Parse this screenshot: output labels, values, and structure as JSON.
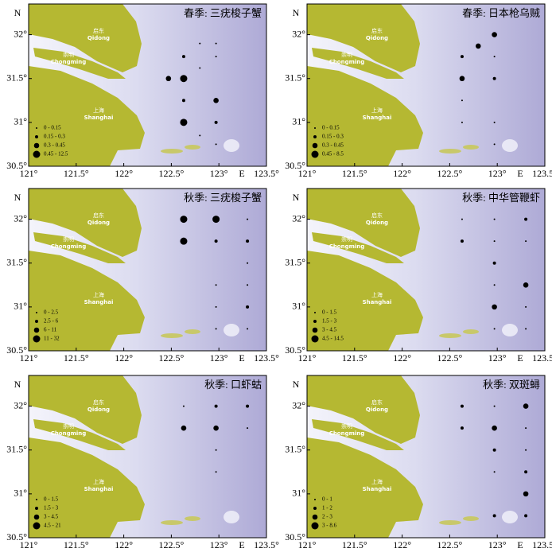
{
  "axis": {
    "xlim": [
      121,
      123.5
    ],
    "ylim": [
      30.5,
      32.35
    ],
    "xticks": [
      {
        "value": 121,
        "label": "121°"
      },
      {
        "value": 121.5,
        "label": "121.5°"
      },
      {
        "value": 122,
        "label": "122°"
      },
      {
        "value": 122.5,
        "label": "122.5°"
      },
      {
        "value": 123,
        "label": "123°"
      },
      {
        "value": 123.5,
        "label": "123.5°"
      }
    ],
    "yticks": [
      {
        "value": 30.5,
        "label": "30.5°"
      },
      {
        "value": 31,
        "label": "31°"
      },
      {
        "value": 31.5,
        "label": "31.5°"
      },
      {
        "value": 32,
        "label": "32°"
      }
    ],
    "x_label": "E",
    "y_label": "N"
  },
  "places": [
    {
      "cn": "启东",
      "en": "Qidong"
    },
    {
      "cn": "崇明",
      "en": "Chongming"
    },
    {
      "cn": "上海",
      "en": "Shanghai"
    }
  ],
  "panels": [
    {
      "title": "春季: 三疣梭子蟹",
      "legend": [
        "0 - 0.15",
        "0.15 - 0.3",
        "0.3 - 0.45",
        "0.45 - 12.5"
      ],
      "points": [
        {
          "lon": 122.8,
          "lat": 31.9,
          "class": 0
        },
        {
          "lon": 122.97,
          "lat": 31.9,
          "class": 0
        },
        {
          "lon": 122.63,
          "lat": 31.75,
          "class": 1
        },
        {
          "lon": 122.97,
          "lat": 31.75,
          "class": 0
        },
        {
          "lon": 122.47,
          "lat": 31.5,
          "class": 2
        },
        {
          "lon": 122.63,
          "lat": 31.5,
          "class": 3
        },
        {
          "lon": 122.8,
          "lat": 31.62,
          "class": 0
        },
        {
          "lon": 122.63,
          "lat": 31.25,
          "class": 1
        },
        {
          "lon": 122.97,
          "lat": 31.25,
          "class": 2
        },
        {
          "lon": 122.63,
          "lat": 31.0,
          "class": 3
        },
        {
          "lon": 122.97,
          "lat": 31.0,
          "class": 1
        },
        {
          "lon": 122.8,
          "lat": 30.85,
          "class": 0
        },
        {
          "lon": 122.97,
          "lat": 30.75,
          "class": 0
        }
      ]
    },
    {
      "title": "春季: 日本枪乌贼",
      "legend": [
        "0 - 0.15",
        "0.15 - 0.3",
        "0.3 - 0.45",
        "0.45 - 8.5"
      ],
      "points": [
        {
          "lon": 122.97,
          "lat": 32.0,
          "class": 2
        },
        {
          "lon": 122.8,
          "lat": 31.87,
          "class": 2
        },
        {
          "lon": 122.63,
          "lat": 31.75,
          "class": 1
        },
        {
          "lon": 122.97,
          "lat": 31.75,
          "class": 0
        },
        {
          "lon": 122.63,
          "lat": 31.5,
          "class": 2
        },
        {
          "lon": 122.97,
          "lat": 31.5,
          "class": 1
        },
        {
          "lon": 122.63,
          "lat": 31.25,
          "class": 0
        },
        {
          "lon": 122.63,
          "lat": 31.0,
          "class": 0
        },
        {
          "lon": 122.97,
          "lat": 31.0,
          "class": 0
        },
        {
          "lon": 122.97,
          "lat": 30.75,
          "class": 0
        }
      ]
    },
    {
      "title": "秋季: 三疣梭子蟹",
      "legend": [
        "0 - 2.5",
        "2.5 - 6",
        "6 - 11",
        "11 - 32"
      ],
      "points": [
        {
          "lon": 122.63,
          "lat": 32.0,
          "class": 3
        },
        {
          "lon": 122.97,
          "lat": 32.0,
          "class": 3
        },
        {
          "lon": 123.3,
          "lat": 32.0,
          "class": 0
        },
        {
          "lon": 122.63,
          "lat": 31.75,
          "class": 3
        },
        {
          "lon": 122.97,
          "lat": 31.75,
          "class": 1
        },
        {
          "lon": 123.3,
          "lat": 31.75,
          "class": 1
        },
        {
          "lon": 123.3,
          "lat": 31.5,
          "class": 0
        },
        {
          "lon": 122.97,
          "lat": 31.25,
          "class": 0
        },
        {
          "lon": 123.3,
          "lat": 31.25,
          "class": 0
        },
        {
          "lon": 122.97,
          "lat": 31.0,
          "class": 0
        },
        {
          "lon": 123.3,
          "lat": 31.0,
          "class": 1
        },
        {
          "lon": 122.97,
          "lat": 30.75,
          "class": 0
        },
        {
          "lon": 123.3,
          "lat": 30.75,
          "class": 0
        }
      ]
    },
    {
      "title": "秋季: 中华管鞭虾",
      "legend": [
        "0 - 1.5",
        "1.5 - 3",
        "3 - 4.5",
        "4.5 - 14.5"
      ],
      "points": [
        {
          "lon": 122.63,
          "lat": 32.0,
          "class": 0
        },
        {
          "lon": 122.97,
          "lat": 32.0,
          "class": 0
        },
        {
          "lon": 123.3,
          "lat": 32.0,
          "class": 1
        },
        {
          "lon": 122.63,
          "lat": 31.75,
          "class": 1
        },
        {
          "lon": 122.97,
          "lat": 31.75,
          "class": 0
        },
        {
          "lon": 123.3,
          "lat": 31.75,
          "class": 0
        },
        {
          "lon": 122.97,
          "lat": 31.5,
          "class": 1
        },
        {
          "lon": 122.97,
          "lat": 31.25,
          "class": 0
        },
        {
          "lon": 123.3,
          "lat": 31.25,
          "class": 2
        },
        {
          "lon": 122.97,
          "lat": 31.0,
          "class": 2
        },
        {
          "lon": 123.3,
          "lat": 31.0,
          "class": 0
        },
        {
          "lon": 122.97,
          "lat": 30.75,
          "class": 0
        },
        {
          "lon": 123.3,
          "lat": 30.75,
          "class": 0
        }
      ]
    },
    {
      "title": "秋季: 口虾蛄",
      "legend": [
        "0 - 1.5",
        "1.5 - 3",
        "3 - 4.5",
        "4.5 - 21"
      ],
      "points": [
        {
          "lon": 122.63,
          "lat": 32.0,
          "class": 0
        },
        {
          "lon": 122.97,
          "lat": 32.0,
          "class": 1
        },
        {
          "lon": 123.3,
          "lat": 32.0,
          "class": 1
        },
        {
          "lon": 122.63,
          "lat": 31.75,
          "class": 2
        },
        {
          "lon": 122.97,
          "lat": 31.75,
          "class": 2
        },
        {
          "lon": 123.3,
          "lat": 31.75,
          "class": 0
        },
        {
          "lon": 122.97,
          "lat": 31.5,
          "class": 0
        },
        {
          "lon": 122.97,
          "lat": 31.25,
          "class": 0
        }
      ]
    },
    {
      "title": "秋季: 双斑蟳",
      "legend": [
        "0 - 1",
        "1 - 2",
        "2 - 3",
        "3 - 8.6"
      ],
      "points": [
        {
          "lon": 122.63,
          "lat": 32.0,
          "class": 1
        },
        {
          "lon": 122.97,
          "lat": 32.0,
          "class": 0
        },
        {
          "lon": 123.3,
          "lat": 32.0,
          "class": 2
        },
        {
          "lon": 122.63,
          "lat": 31.75,
          "class": 1
        },
        {
          "lon": 122.97,
          "lat": 31.75,
          "class": 2
        },
        {
          "lon": 123.3,
          "lat": 31.75,
          "class": 0
        },
        {
          "lon": 122.97,
          "lat": 31.5,
          "class": 1
        },
        {
          "lon": 123.3,
          "lat": 31.5,
          "class": 0
        },
        {
          "lon": 122.97,
          "lat": 31.25,
          "class": 0
        },
        {
          "lon": 123.3,
          "lat": 31.25,
          "class": 1
        },
        {
          "lon": 123.3,
          "lat": 31.0,
          "class": 2
        },
        {
          "lon": 122.97,
          "lat": 30.75,
          "class": 1
        },
        {
          "lon": 123.3,
          "lat": 30.75,
          "class": 1
        }
      ]
    }
  ]
}
